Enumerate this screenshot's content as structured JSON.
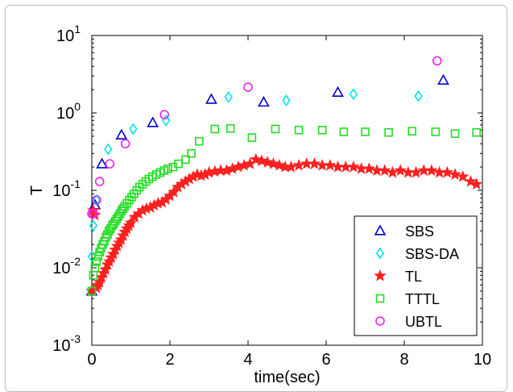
{
  "chart_data": {
    "type": "scatter",
    "title": "",
    "xlabel": "time(sec)",
    "ylabel": "T",
    "xlim": [
      0,
      10
    ],
    "ylim": [
      0.001,
      10
    ],
    "yscale": "log",
    "xticks": [
      "0",
      "2",
      "4",
      "6",
      "8",
      "10"
    ],
    "yticks": [
      {
        "base": "10",
        "exp": "-3",
        "value": 0.001
      },
      {
        "base": "10",
        "exp": "-2",
        "value": 0.01
      },
      {
        "base": "10",
        "exp": "-1",
        "value": 0.1
      },
      {
        "base": "10",
        "exp": "0",
        "value": 1
      },
      {
        "base": "10",
        "exp": "1",
        "value": 10
      }
    ],
    "grid": false,
    "legend_position": "bottom-right",
    "series": [
      {
        "name": "SBS",
        "marker": "triangle",
        "color": "#0000cc",
        "x": [
          0.0,
          0.08,
          0.26,
          0.76,
          1.56,
          3.06,
          4.4,
          6.3,
          9.0
        ],
        "y": [
          0.005,
          0.065,
          0.22,
          0.52,
          0.75,
          1.5,
          1.38,
          1.85,
          2.65
        ]
      },
      {
        "name": "SBS-DA",
        "marker": "diamond",
        "color": "#00e5ee",
        "x": [
          0.0,
          0.04,
          0.12,
          0.42,
          1.06,
          1.9,
          3.5,
          4.98,
          6.7,
          8.36
        ],
        "y": [
          0.014,
          0.035,
          0.075,
          0.34,
          0.62,
          0.8,
          1.6,
          1.45,
          1.75,
          1.65
        ]
      },
      {
        "name": "TL",
        "marker": "star",
        "color": "#ff2020",
        "x": [
          0.0,
          0.04,
          0.08,
          0.12,
          0.16,
          0.2,
          0.25,
          0.3,
          0.35,
          0.4,
          0.45,
          0.5,
          0.55,
          0.6,
          0.65,
          0.7,
          0.75,
          0.8,
          0.85,
          0.9,
          0.95,
          1.0,
          1.1,
          1.2,
          1.3,
          1.4,
          1.5,
          1.6,
          1.7,
          1.8,
          1.9,
          2.0,
          2.1,
          2.2,
          2.3,
          2.4,
          2.5,
          2.6,
          2.7,
          2.8,
          2.9,
          3.0,
          3.15,
          3.3,
          3.45,
          3.6,
          3.75,
          3.9,
          4.05,
          4.2,
          4.35,
          4.5,
          4.65,
          4.8,
          4.95,
          5.1,
          5.3,
          5.5,
          5.7,
          5.9,
          6.1,
          6.3,
          6.5,
          6.7,
          6.9,
          7.1,
          7.3,
          7.5,
          7.7,
          7.9,
          8.1,
          8.3,
          8.5,
          8.7,
          8.9,
          9.1,
          9.3,
          9.5,
          9.7,
          9.85
        ],
        "y": [
          0.005,
          0.055,
          0.048,
          0.0055,
          0.006,
          0.0065,
          0.0075,
          0.0085,
          0.0095,
          0.011,
          0.012,
          0.0135,
          0.015,
          0.017,
          0.019,
          0.021,
          0.023,
          0.026,
          0.029,
          0.032,
          0.035,
          0.038,
          0.045,
          0.05,
          0.055,
          0.058,
          0.06,
          0.064,
          0.068,
          0.07,
          0.076,
          0.085,
          0.095,
          0.11,
          0.12,
          0.13,
          0.14,
          0.15,
          0.16,
          0.155,
          0.16,
          0.17,
          0.175,
          0.18,
          0.18,
          0.19,
          0.2,
          0.21,
          0.22,
          0.25,
          0.24,
          0.23,
          0.22,
          0.21,
          0.2,
          0.2,
          0.21,
          0.22,
          0.22,
          0.21,
          0.21,
          0.2,
          0.2,
          0.2,
          0.19,
          0.19,
          0.18,
          0.18,
          0.17,
          0.18,
          0.17,
          0.17,
          0.18,
          0.18,
          0.17,
          0.17,
          0.16,
          0.15,
          0.13,
          0.12
        ]
      },
      {
        "name": "TTTL",
        "marker": "square",
        "color": "#22dd22",
        "x": [
          0.0,
          0.04,
          0.08,
          0.12,
          0.16,
          0.2,
          0.24,
          0.28,
          0.32,
          0.36,
          0.4,
          0.44,
          0.48,
          0.52,
          0.56,
          0.6,
          0.64,
          0.68,
          0.72,
          0.76,
          0.8,
          0.84,
          0.9,
          0.96,
          1.02,
          1.08,
          1.15,
          1.22,
          1.3,
          1.38,
          1.46,
          1.55,
          1.65,
          1.75,
          1.85,
          1.95,
          2.08,
          2.22,
          2.4,
          2.55,
          2.75,
          3.15,
          3.55,
          4.1,
          4.7,
          5.3,
          5.9,
          6.45,
          7.0,
          7.6,
          8.2,
          8.8,
          9.3,
          9.85
        ],
        "y": [
          0.005,
          0.008,
          0.01,
          0.012,
          0.014,
          0.016,
          0.018,
          0.02,
          0.022,
          0.025,
          0.027,
          0.03,
          0.032,
          0.035,
          0.037,
          0.04,
          0.043,
          0.046,
          0.05,
          0.054,
          0.058,
          0.062,
          0.068,
          0.075,
          0.082,
          0.09,
          0.1,
          0.11,
          0.12,
          0.13,
          0.14,
          0.15,
          0.16,
          0.17,
          0.18,
          0.19,
          0.2,
          0.22,
          0.25,
          0.3,
          0.43,
          0.62,
          0.63,
          0.48,
          0.62,
          0.6,
          0.6,
          0.57,
          0.57,
          0.56,
          0.58,
          0.57,
          0.54,
          0.56
        ]
      },
      {
        "name": "UBTL",
        "marker": "circle",
        "color": "#ee22ee",
        "x": [
          0.0,
          0.04,
          0.12,
          0.2,
          0.46,
          0.86,
          1.86,
          4.0,
          8.84
        ],
        "y": [
          0.05,
          0.05,
          0.075,
          0.13,
          0.22,
          0.4,
          0.95,
          2.15,
          4.7
        ]
      }
    ]
  }
}
